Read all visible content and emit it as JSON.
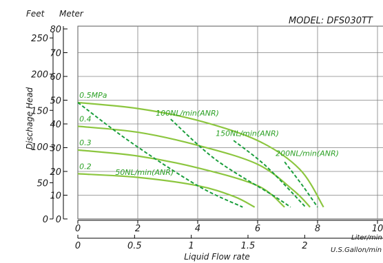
{
  "chart_data": {
    "type": "line",
    "model_label": "MODEL: DFS030TT",
    "left_axis_units": [
      "Feet",
      "Meter"
    ],
    "ylabel": "Dischage Head",
    "xlabel": "Liquid Flow rate",
    "x_unit_primary": "Liter/min",
    "x_unit_secondary": "U.S.Gallon/min",
    "ylim_meter": [
      0,
      80
    ],
    "xlim_lpm": [
      0,
      10
    ],
    "x_ticks_lpm": [
      "0",
      "2",
      "4",
      "6",
      "8",
      "10"
    ],
    "y_ticks_meter": [
      "0",
      "10",
      "20",
      "30",
      "40",
      "50",
      "60",
      "70",
      "80"
    ],
    "y_ticks_feet": [
      {
        "label": "0",
        "value": 0
      },
      {
        "label": "50",
        "value": 50
      },
      {
        "label": "100",
        "value": 100
      },
      {
        "label": "150",
        "value": 150
      },
      {
        "label": "200",
        "value": 200
      },
      {
        "label": "250",
        "value": 250
      }
    ],
    "x_ticks_gpm": [
      {
        "label": "0",
        "value": 0
      },
      {
        "label": "0.5",
        "value": 0.5
      },
      {
        "label": "1",
        "value": 1
      },
      {
        "label": "1.5",
        "value": 1.5
      },
      {
        "label": "2",
        "value": 2
      }
    ],
    "grid": true,
    "pressure_series": [
      {
        "name": "0.5MPa",
        "label_at": [
          0.05,
          51
        ],
        "points": [
          [
            0,
            49
          ],
          [
            2,
            46.5
          ],
          [
            4,
            41.5
          ],
          [
            6,
            33
          ],
          [
            7.4,
            21
          ],
          [
            8.2,
            5
          ]
        ]
      },
      {
        "name": "0.4",
        "label_at": [
          0.05,
          41
        ],
        "points": [
          [
            0,
            39
          ],
          [
            2,
            36.5
          ],
          [
            4,
            31
          ],
          [
            6,
            23
          ],
          [
            7.2,
            12
          ],
          [
            7.75,
            5
          ]
        ]
      },
      {
        "name": "0.3",
        "label_at": [
          0.05,
          31
        ],
        "points": [
          [
            0,
            29
          ],
          [
            2,
            26.5
          ],
          [
            4,
            21.5
          ],
          [
            6,
            14
          ],
          [
            6.9,
            5
          ]
        ]
      },
      {
        "name": "0.2",
        "label_at": [
          0.05,
          21
        ],
        "points": [
          [
            0,
            19
          ],
          [
            2,
            17.5
          ],
          [
            4,
            14
          ],
          [
            5.2,
            9.5
          ],
          [
            5.9,
            5
          ]
        ]
      }
    ],
    "air_consumption_series": [
      {
        "name": "50NL/min(ANR)",
        "label_at": [
          1.25,
          18.6
        ],
        "points": [
          [
            0,
            49
          ],
          [
            1.8,
            32
          ],
          [
            4,
            14
          ],
          [
            5.5,
            5
          ]
        ]
      },
      {
        "name": "100NL/min(ANR)",
        "label_at": [
          2.6,
          43.5
        ],
        "points": [
          [
            3.1,
            42
          ],
          [
            4.6,
            25
          ],
          [
            6.5,
            10
          ],
          [
            7.1,
            5
          ]
        ]
      },
      {
        "name": "150NL/min(ANR)",
        "label_at": [
          4.6,
          35
        ],
        "points": [
          [
            5.2,
            33
          ],
          [
            6.3,
            22
          ],
          [
            7.6,
            5
          ]
        ]
      },
      {
        "name": "200NL/min(ANR)",
        "label_at": [
          6.6,
          26.5
        ],
        "points": [
          [
            6.9,
            24
          ],
          [
            7.5,
            14
          ],
          [
            8,
            5
          ]
        ]
      }
    ],
    "colors": {
      "curve": "#8cc63f",
      "air_line": "#1a9e3c",
      "grid": "#808080",
      "axis": "#000000",
      "label": "#2aa024"
    }
  }
}
